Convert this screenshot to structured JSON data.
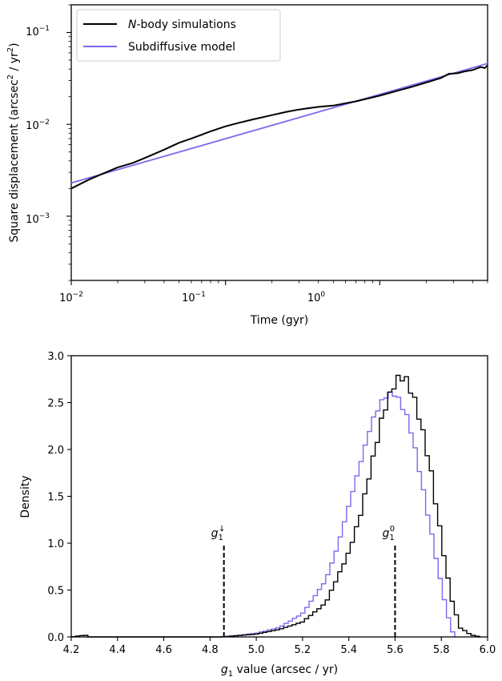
{
  "chart_data": [
    {
      "type": "line",
      "xscale": "log",
      "yscale": "log",
      "xlim": [
        0.01,
        5
      ],
      "ylim": [
        0.0002,
        0.2
      ],
      "xlabel": "Time (gyr)",
      "ylabel_parts": {
        "main": "Square displacement (arcsec",
        "sup1": "2",
        "mid": " / yr",
        "sup2": "2",
        "end": ")"
      },
      "xticks": [
        {
          "base": "10",
          "exp": "−2",
          "value": 0.01
        },
        {
          "base": "10",
          "exp": "−1",
          "value": 0.1
        },
        {
          "base": "10",
          "exp": "0",
          "value": 1
        }
      ],
      "yticks": [
        {
          "base": "10",
          "exp": "−3",
          "value": 0.001
        },
        {
          "base": "10",
          "exp": "−2",
          "value": 0.01
        },
        {
          "base": "10",
          "exp": "−1",
          "value": 0.1
        }
      ],
      "legend": {
        "position": "upper-left",
        "entries": [
          {
            "label_italic": "N",
            "label_rest": "-body simulations",
            "color": "#000000"
          },
          {
            "label_italic": "",
            "label_rest": "Subdiffusive model",
            "color": "#7b68ee"
          }
        ]
      },
      "series": [
        {
          "name": "N-body simulations",
          "color": "#000000",
          "x": [
            0.01,
            0.013,
            0.016,
            0.02,
            0.025,
            0.03,
            0.04,
            0.05,
            0.06,
            0.07,
            0.08,
            0.1,
            0.12,
            0.15,
            0.2,
            0.25,
            0.3,
            0.4,
            0.5,
            0.7,
            1.0,
            1.3,
            1.6,
            2.0,
            2.5,
            2.8,
            3.2,
            3.5,
            4.0,
            4.5,
            4.8,
            5.0
          ],
          "y": [
            0.002,
            0.0025,
            0.0029,
            0.0034,
            0.0038,
            0.0043,
            0.0053,
            0.0063,
            0.007,
            0.0077,
            0.0084,
            0.0095,
            0.0103,
            0.0113,
            0.0126,
            0.0137,
            0.0145,
            0.0155,
            0.016,
            0.0178,
            0.0205,
            0.0232,
            0.0255,
            0.0285,
            0.032,
            0.0355,
            0.036,
            0.0375,
            0.039,
            0.042,
            0.041,
            0.044
          ]
        },
        {
          "name": "Subdiffusive model",
          "color": "#7b68ee",
          "x": [
            0.01,
            5.0
          ],
          "y": [
            0.0023,
            0.046
          ]
        }
      ]
    },
    {
      "type": "histogram",
      "xlim": [
        4.2,
        6.0
      ],
      "ylim": [
        0.0,
        3.0
      ],
      "xlabel_parts": {
        "var": "g",
        "sub": "1",
        "rest": " value (arcsec / yr)"
      },
      "ylabel": "Density",
      "xticks": [
        "4.2",
        "4.4",
        "4.6",
        "4.8",
        "5.0",
        "5.2",
        "5.4",
        "5.6",
        "5.8",
        "6.0"
      ],
      "yticks": [
        "0.0",
        "0.5",
        "1.0",
        "1.5",
        "2.0",
        "2.5",
        "3.0"
      ],
      "bin_width": 0.018,
      "annotations": [
        {
          "var": "g",
          "sub": "1",
          "sup": "↓",
          "x": 4.86,
          "y_top": 1.0
        },
        {
          "var": "g",
          "sub": "1",
          "sup": "0",
          "x": 5.6,
          "y_top": 1.0
        }
      ],
      "series": [
        {
          "name": "N-body simulations",
          "color": "#000000",
          "peak": {
            "x": 5.63,
            "y": 2.78
          },
          "profile": [
            [
              4.2,
              0.0
            ],
            [
              4.26,
              0.02
            ],
            [
              4.28,
              0.0
            ],
            [
              4.85,
              0.0
            ],
            [
              4.9,
              0.01
            ],
            [
              5.0,
              0.03
            ],
            [
              5.1,
              0.08
            ],
            [
              5.2,
              0.16
            ],
            [
              5.3,
              0.36
            ],
            [
              5.4,
              0.9
            ],
            [
              5.45,
              1.3
            ],
            [
              5.5,
              1.85
            ],
            [
              5.55,
              2.4
            ],
            [
              5.6,
              2.72
            ],
            [
              5.63,
              2.78
            ],
            [
              5.66,
              2.7
            ],
            [
              5.7,
              2.4
            ],
            [
              5.75,
              1.85
            ],
            [
              5.8,
              1.05
            ],
            [
              5.84,
              0.45
            ],
            [
              5.88,
              0.1
            ],
            [
              5.93,
              0.02
            ],
            [
              5.97,
              0.0
            ]
          ]
        },
        {
          "name": "Subdiffusive model",
          "color": "#7b68ee",
          "peak": {
            "x": 5.59,
            "y": 2.61
          },
          "profile": [
            [
              4.85,
              0.0
            ],
            [
              4.9,
              0.01
            ],
            [
              5.0,
              0.04
            ],
            [
              5.1,
              0.1
            ],
            [
              5.2,
              0.25
            ],
            [
              5.3,
              0.6
            ],
            [
              5.35,
              0.95
            ],
            [
              5.4,
              1.4
            ],
            [
              5.45,
              1.85
            ],
            [
              5.5,
              2.3
            ],
            [
              5.55,
              2.55
            ],
            [
              5.59,
              2.61
            ],
            [
              5.62,
              2.52
            ],
            [
              5.66,
              2.3
            ],
            [
              5.7,
              1.85
            ],
            [
              5.75,
              1.2
            ],
            [
              5.8,
              0.55
            ],
            [
              5.84,
              0.1
            ],
            [
              5.86,
              0.0
            ]
          ]
        }
      ]
    }
  ]
}
